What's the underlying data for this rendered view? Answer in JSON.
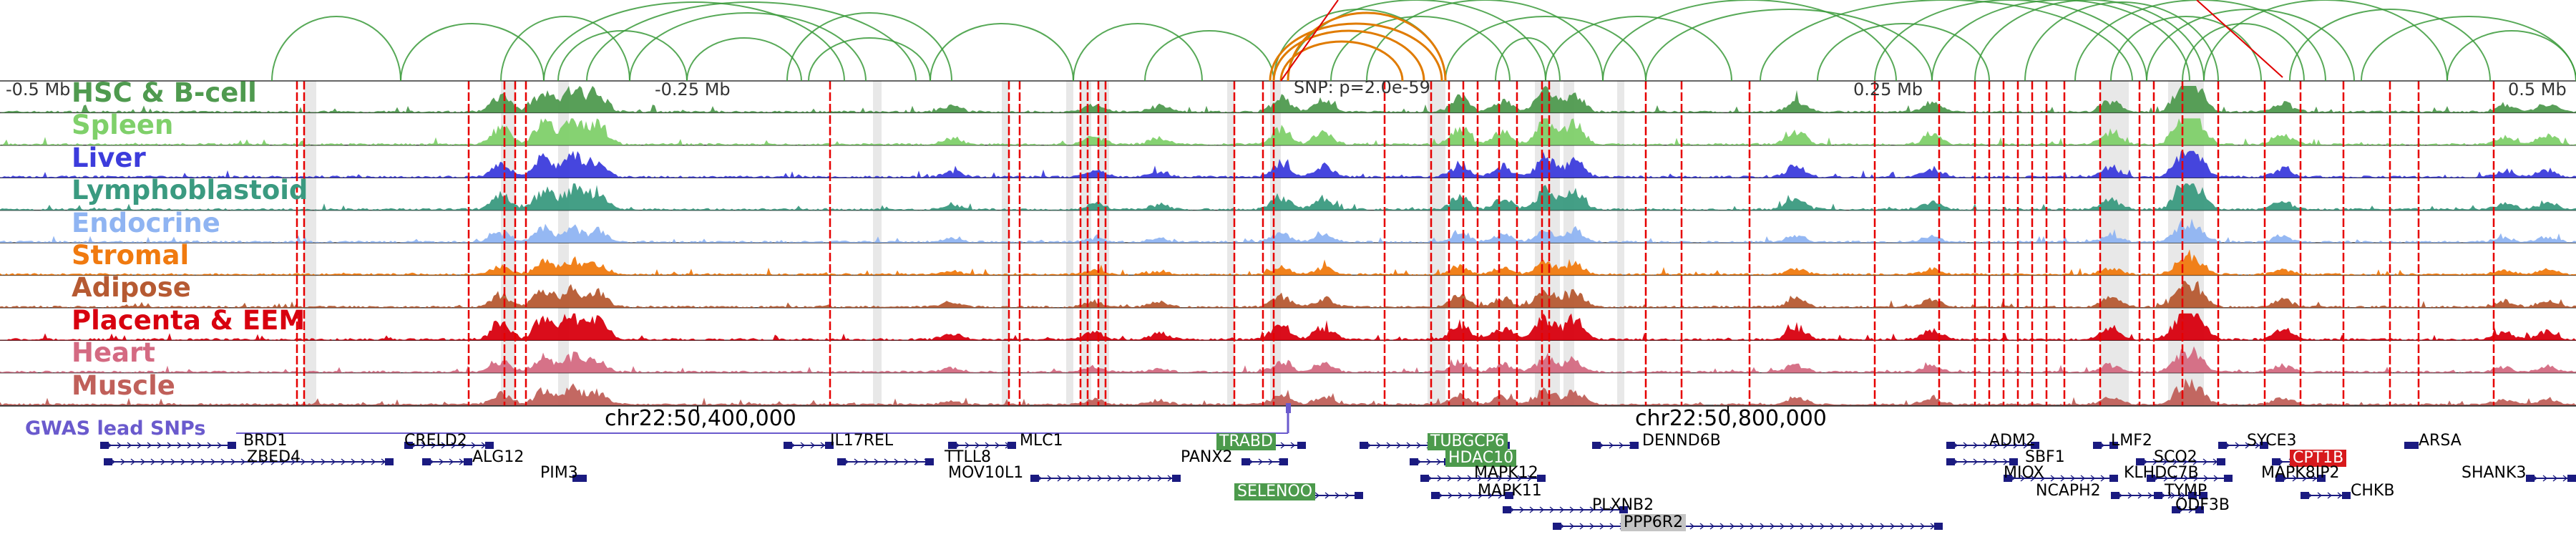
{
  "tracks": [
    {
      "name": "HSC & B-cell",
      "color": "#4f9a4f"
    },
    {
      "name": "Spleen",
      "color": "#7fd06a"
    },
    {
      "name": "Liver",
      "color": "#3c3cdc"
    },
    {
      "name": "Lymphoblastoid",
      "color": "#3a9a80"
    },
    {
      "name": "Endocrine",
      "color": "#8fb4f2"
    },
    {
      "name": "Stromal",
      "color": "#f07a0f"
    },
    {
      "name": "Adipose",
      "color": "#b65a32"
    },
    {
      "name": "Placenta & EEM",
      "color": "#d8000f"
    },
    {
      "name": "Heart",
      "color": "#d46a82"
    },
    {
      "name": "Muscle",
      "color": "#c0605a"
    }
  ],
  "top_track": {
    "pos_left": "-0.5 Mb",
    "pos_mid_left": "-0.25 Mb",
    "snp_label": "SNP: p=2.0e-59",
    "pos_mid_right": "0.25 Mb",
    "pos_right": "0.5 Mb"
  },
  "coords": {
    "left": "chr22:50,400,000",
    "right": "chr22:50,800,000"
  },
  "gwas_label": "GWAS lead SNPs",
  "colors": {
    "loop": "#3a9a3a",
    "loop_highlight": "#e07b00",
    "loop_red": "#e00000",
    "grid": "#cfcfcf",
    "marker": "#e60000",
    "snp": "#6a5acd",
    "gene": "#1a1a80"
  },
  "genes": [
    {
      "name": "BRD1"
    },
    {
      "name": "ZBED4"
    },
    {
      "name": "CRELD2"
    },
    {
      "name": "ALG12"
    },
    {
      "name": "PIM3"
    },
    {
      "name": "IL17REL"
    },
    {
      "name": "TTLL8"
    },
    {
      "name": "MLC1"
    },
    {
      "name": "MOV10L1"
    },
    {
      "name": "TRABD",
      "highlight": "green"
    },
    {
      "name": "PANX2"
    },
    {
      "name": "SELENOO",
      "highlight": "green"
    },
    {
      "name": "TUBGCP6",
      "highlight": "green"
    },
    {
      "name": "HDAC10",
      "highlight": "green"
    },
    {
      "name": "MAPK12"
    },
    {
      "name": "MAPK11"
    },
    {
      "name": "PLXNB2"
    },
    {
      "name": "PPP6R2",
      "highlight": "grey"
    },
    {
      "name": "DENND6B"
    },
    {
      "name": "ADM2"
    },
    {
      "name": "SBF1"
    },
    {
      "name": "MIOX"
    },
    {
      "name": "LMF2"
    },
    {
      "name": "NCAPH2"
    },
    {
      "name": "SCO2"
    },
    {
      "name": "KLHDC7B"
    },
    {
      "name": "TYMP"
    },
    {
      "name": "ODF3B"
    },
    {
      "name": "SYCE3"
    },
    {
      "name": "CPT1B",
      "highlight": "red"
    },
    {
      "name": "MAPK8IP2"
    },
    {
      "name": "CHKB"
    },
    {
      "name": "ARSA"
    },
    {
      "name": "SHANK3"
    }
  ]
}
